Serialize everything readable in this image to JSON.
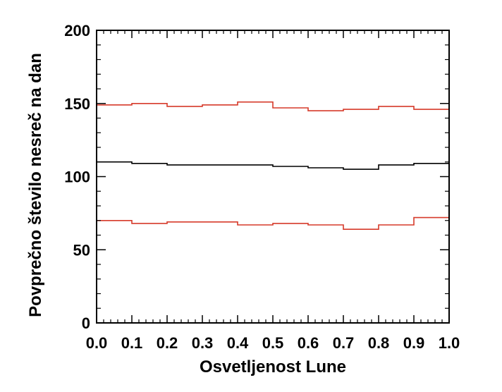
{
  "chart_data": {
    "type": "line",
    "step": true,
    "xlabel": "Osvetljenost Lune",
    "ylabel": "Povprečno število nesreč na dan",
    "xlim": [
      0.0,
      1.0
    ],
    "ylim": [
      0,
      200
    ],
    "x_ticks": [
      "0.0",
      "0.1",
      "0.2",
      "0.3",
      "0.4",
      "0.5",
      "0.6",
      "0.7",
      "0.8",
      "0.9",
      "1.0"
    ],
    "y_ticks": [
      "0",
      "50",
      "100",
      "150",
      "200"
    ],
    "bin_edges": [
      0.0,
      0.1,
      0.2,
      0.3,
      0.4,
      0.5,
      0.6,
      0.7,
      0.8,
      0.9,
      1.0
    ],
    "grid": false,
    "series": [
      {
        "color": "#d63a2a",
        "values": [
          149,
          150,
          148,
          149,
          151,
          147,
          145,
          146,
          148,
          146
        ]
      },
      {
        "color": "#000000",
        "values": [
          110,
          109,
          108,
          108,
          108,
          107,
          106,
          105,
          108,
          109
        ]
      },
      {
        "color": "#d63a2a",
        "values": [
          70,
          68,
          69,
          69,
          67,
          68,
          67,
          64,
          67,
          72
        ]
      }
    ]
  }
}
